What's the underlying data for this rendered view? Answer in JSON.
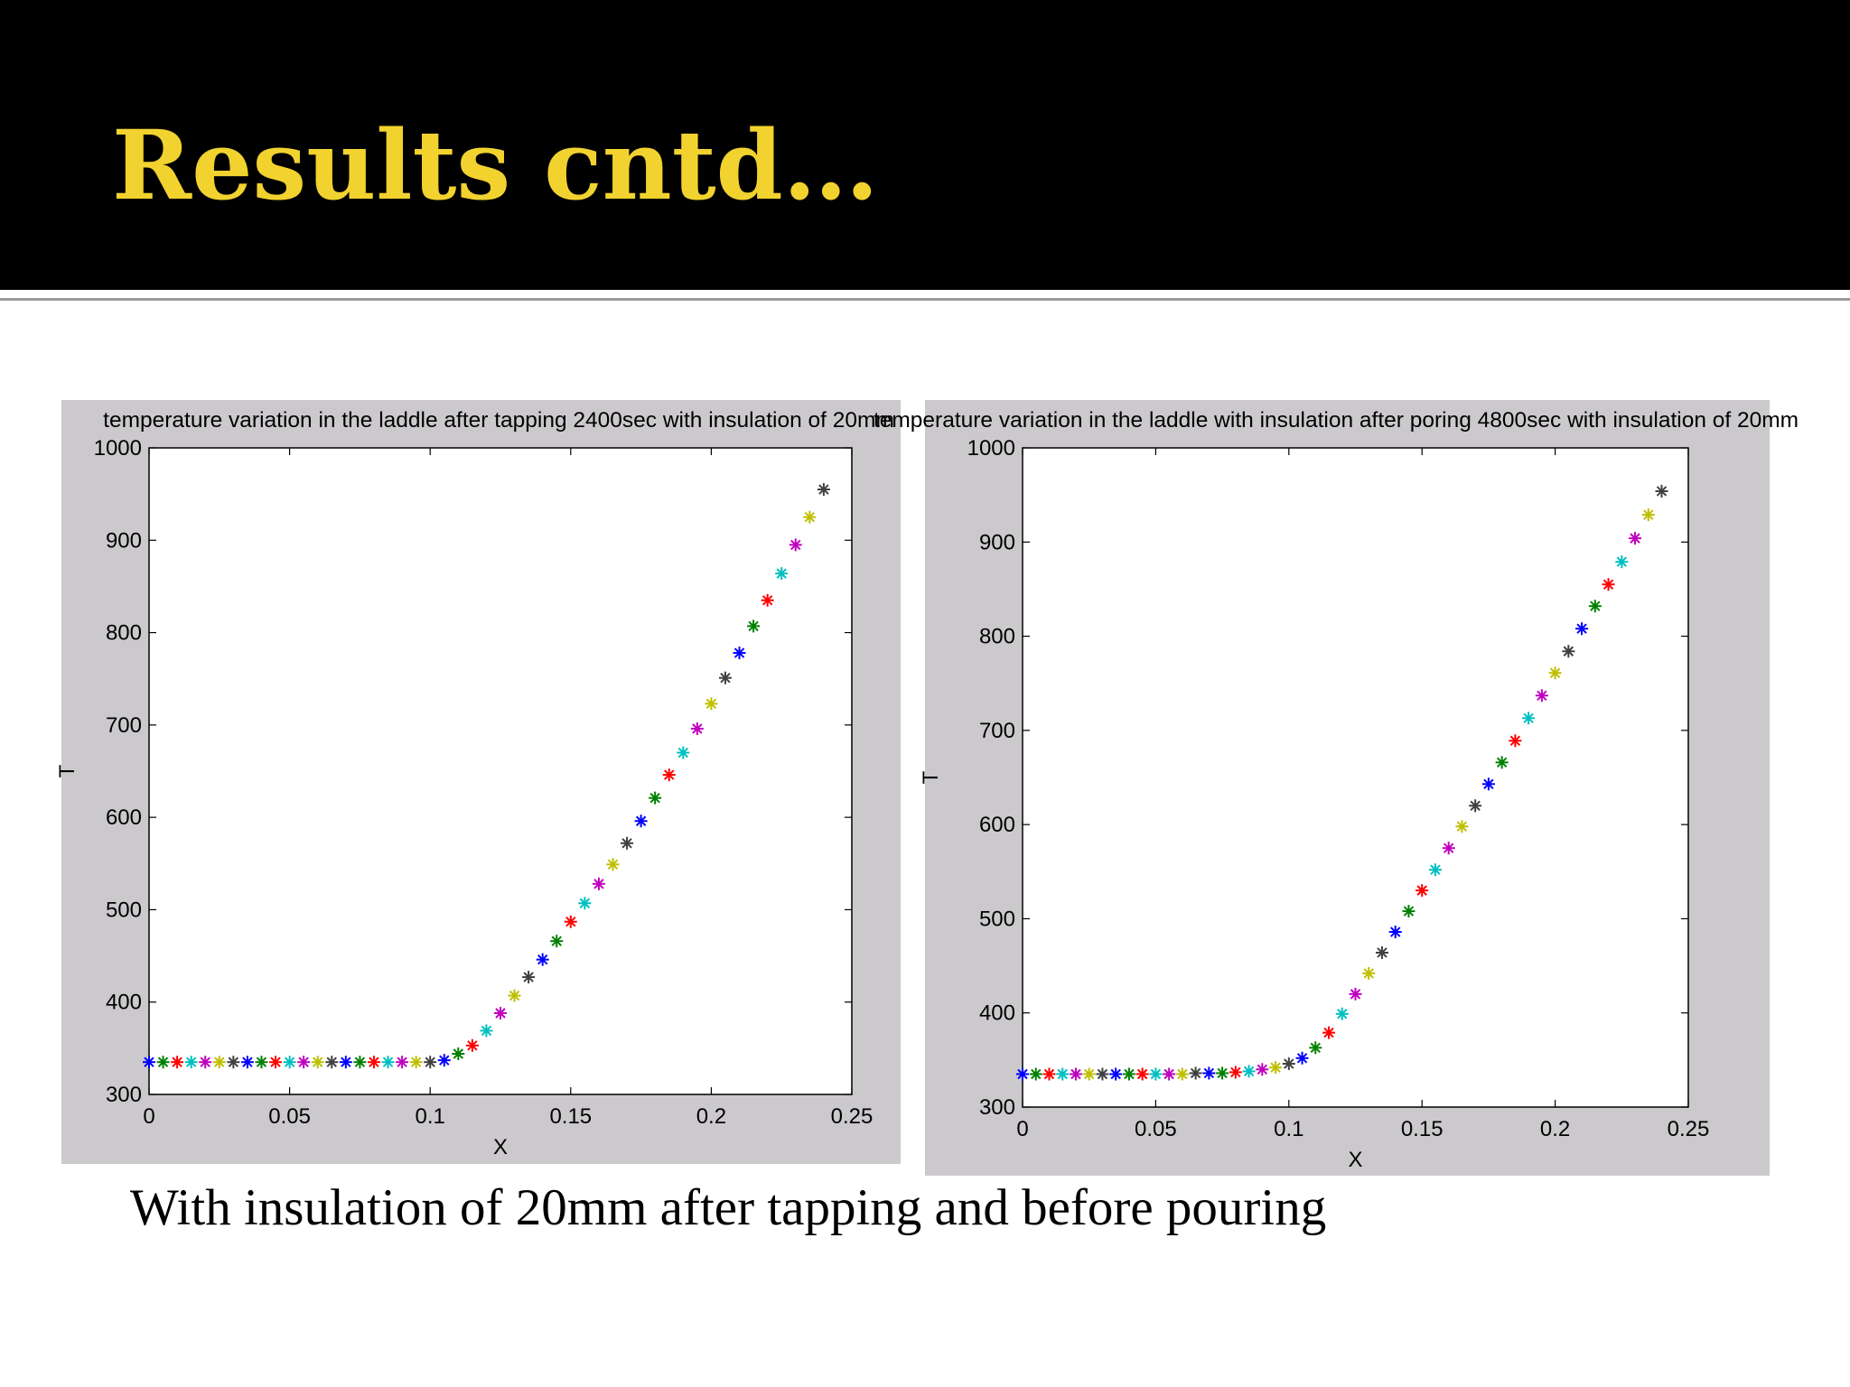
{
  "slide": {
    "title": "Results cntd…",
    "caption": "With insulation of 20mm after tapping and before pouring"
  },
  "colors": {
    "header_background": "#000000",
    "title_color": "#f2d22e",
    "figure_background": "#ccc9cd",
    "marker_cycle": [
      "#0000ff",
      "#008000",
      "#ff0000",
      "#00bfbf",
      "#bf00bf",
      "#bfbf00",
      "#404040"
    ]
  },
  "chart_data": [
    {
      "type": "scatter",
      "title": "temperature variation in the laddle after tapping 2400sec with insulation of 20mm",
      "xlabel": "X",
      "ylabel": "T",
      "xlim": [
        0,
        0.25
      ],
      "ylim": [
        300,
        1000
      ],
      "xticks": [
        "0",
        "0.05",
        "0.1",
        "0.15",
        "0.2",
        "0.25"
      ],
      "yticks": [
        "300",
        "400",
        "500",
        "600",
        "700",
        "800",
        "900",
        "1000"
      ],
      "grid": false,
      "marker": "*",
      "x": [
        0,
        0.005,
        0.01,
        0.015,
        0.02,
        0.025,
        0.03,
        0.035,
        0.04,
        0.045,
        0.05,
        0.055,
        0.06,
        0.065,
        0.07,
        0.075,
        0.08,
        0.085,
        0.09,
        0.095,
        0.1,
        0.105,
        0.11,
        0.115,
        0.12,
        0.125,
        0.13,
        0.135,
        0.14,
        0.145,
        0.15,
        0.155,
        0.16,
        0.165,
        0.17,
        0.175,
        0.18,
        0.185,
        0.19,
        0.195,
        0.2,
        0.205,
        0.21,
        0.215,
        0.22,
        0.225,
        0.23,
        0.235,
        0.24
      ],
      "y": [
        335,
        335,
        335,
        335,
        335,
        335,
        335,
        335,
        335,
        335,
        335,
        335,
        335,
        335,
        335,
        335,
        335,
        335,
        335,
        335,
        335,
        337,
        344,
        353,
        369,
        388,
        407,
        427,
        446,
        466,
        487,
        507,
        528,
        549,
        572,
        596,
        621,
        646,
        670,
        696,
        723,
        751,
        778,
        807,
        835,
        864,
        895,
        925,
        955
      ]
    },
    {
      "type": "scatter",
      "title": "temperature variation in the laddle with insulation after poring 4800sec with insulation of 20mm",
      "xlabel": "X",
      "ylabel": "T",
      "xlim": [
        0,
        0.25
      ],
      "ylim": [
        300,
        1000
      ],
      "xticks": [
        "0",
        "0.05",
        "0.1",
        "0.15",
        "0.2",
        "0.25"
      ],
      "yticks": [
        "300",
        "400",
        "500",
        "600",
        "700",
        "800",
        "900",
        "1000"
      ],
      "grid": false,
      "marker": "*",
      "x": [
        0,
        0.005,
        0.01,
        0.015,
        0.02,
        0.025,
        0.03,
        0.035,
        0.04,
        0.045,
        0.05,
        0.055,
        0.06,
        0.065,
        0.07,
        0.075,
        0.08,
        0.085,
        0.09,
        0.095,
        0.1,
        0.105,
        0.11,
        0.115,
        0.12,
        0.125,
        0.13,
        0.135,
        0.14,
        0.145,
        0.15,
        0.155,
        0.16,
        0.165,
        0.17,
        0.175,
        0.18,
        0.185,
        0.19,
        0.195,
        0.2,
        0.205,
        0.21,
        0.215,
        0.22,
        0.225,
        0.23,
        0.235,
        0.24
      ],
      "y": [
        335,
        335,
        335,
        335,
        335,
        335,
        335,
        335,
        335,
        335,
        335,
        335,
        335,
        336,
        336,
        336,
        337,
        338,
        340,
        342,
        346,
        352,
        363,
        379,
        399,
        420,
        442,
        464,
        486,
        508,
        530,
        552,
        575,
        598,
        620,
        643,
        666,
        689,
        713,
        737,
        761,
        784,
        808,
        832,
        855,
        879,
        904,
        929,
        954
      ]
    }
  ]
}
